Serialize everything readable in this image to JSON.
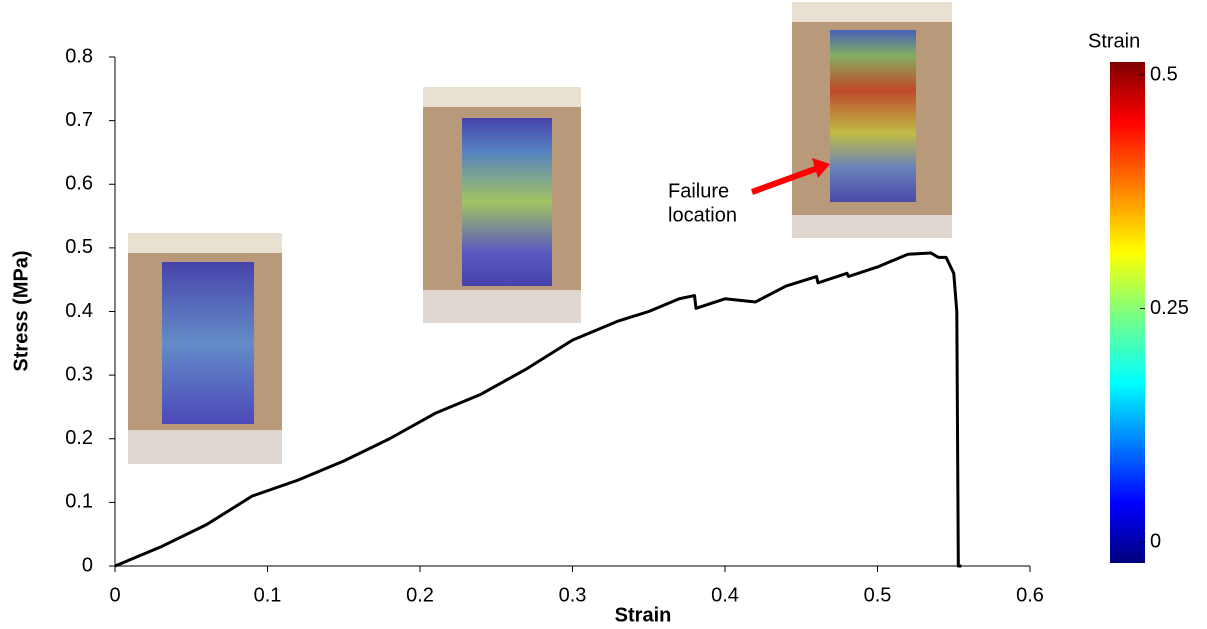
{
  "chart_data": {
    "type": "line",
    "xlabel": "Strain",
    "ylabel": "Stress (MPa)",
    "x": [
      0,
      0.01,
      0.03,
      0.06,
      0.09,
      0.12,
      0.15,
      0.18,
      0.21,
      0.24,
      0.27,
      0.3,
      0.33,
      0.35,
      0.37,
      0.38,
      0.381,
      0.4,
      0.42,
      0.44,
      0.46,
      0.461,
      0.48,
      0.481,
      0.5,
      0.52,
      0.535,
      0.54,
      0.545,
      0.55,
      0.552,
      0.553,
      0.555
    ],
    "series": [
      {
        "color": "#000000",
        "values": [
          0,
          0.01,
          0.03,
          0.065,
          0.11,
          0.135,
          0.165,
          0.2,
          0.24,
          0.27,
          0.31,
          0.355,
          0.385,
          0.4,
          0.42,
          0.425,
          0.405,
          0.42,
          0.415,
          0.44,
          0.455,
          0.445,
          0.46,
          0.455,
          0.47,
          0.49,
          0.492,
          0.485,
          0.485,
          0.46,
          0.4,
          0,
          0
        ]
      }
    ],
    "xlim": [
      0,
      0.6
    ],
    "ylim": [
      0,
      0.8
    ],
    "xticks": [
      0,
      0.1,
      0.2,
      0.3,
      0.4,
      0.5,
      0.6
    ],
    "yticks": [
      0,
      0.1,
      0.2,
      0.3,
      0.4,
      0.5,
      0.6,
      0.7,
      0.8
    ],
    "annotation_lines": [
      "Failure",
      "location"
    ],
    "colorbar": {
      "title": "Strain",
      "lim": [
        0,
        0.5
      ],
      "ticks": [
        0,
        0.25,
        0.5
      ]
    }
  }
}
